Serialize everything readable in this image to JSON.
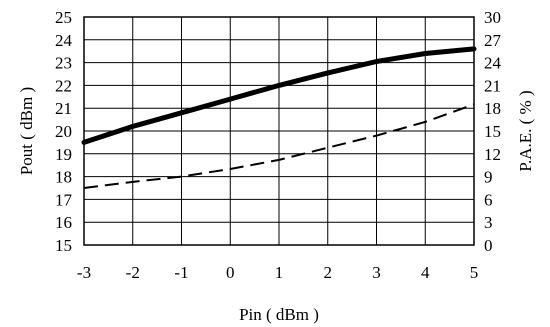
{
  "chart_data": {
    "type": "line",
    "title": "",
    "xlabel": "Pin ( dBm )",
    "ylabel": "Pout ( dBm )",
    "y2label": "P.A.E. ( % )",
    "x": [
      -3,
      -2,
      -1,
      0,
      1,
      2,
      3,
      4,
      5
    ],
    "xlim": [
      -3,
      5
    ],
    "ylim": [
      15,
      25
    ],
    "y2lim": [
      0,
      30
    ],
    "xticks": [
      "-3",
      "-2",
      "-1",
      "0",
      "1",
      "2",
      "3",
      "4",
      "5"
    ],
    "yticks": [
      "15",
      "16",
      "17",
      "18",
      "19",
      "20",
      "21",
      "22",
      "23",
      "24",
      "25"
    ],
    "y2ticks": [
      "0",
      "3",
      "6",
      "9",
      "12",
      "15",
      "18",
      "21",
      "24",
      "27",
      "30"
    ],
    "grid": true,
    "legend": "none",
    "series": [
      {
        "axis": "left",
        "style": "solid-thick",
        "color": "#000000",
        "values": [
          19.5,
          20.2,
          20.8,
          21.4,
          22.0,
          22.55,
          23.05,
          23.4,
          23.6
        ]
      },
      {
        "axis": "right",
        "style": "dashed",
        "color": "#000000",
        "values": [
          7.5,
          8.3,
          9.0,
          10.0,
          11.2,
          12.8,
          14.4,
          16.2,
          18.5
        ]
      }
    ]
  }
}
